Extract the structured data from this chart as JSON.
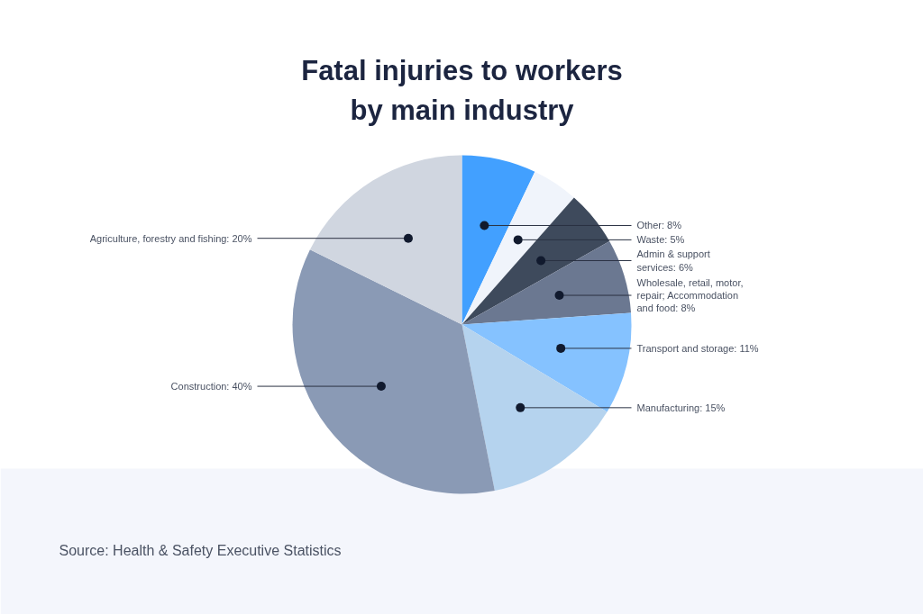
{
  "chart_data": {
    "type": "pie",
    "title": "Fatal injuries to workers\nby main industry",
    "categories": [
      "Other",
      "Waste",
      "Admin & support\nservices",
      "Wholesale, retail, motor,\nrepair; Accommodation\nand food",
      "Transport and storage",
      "Manufacturing",
      "Construction",
      "Agriculture, forestry and fishing"
    ],
    "values": [
      8,
      5,
      6,
      8,
      11,
      15,
      40,
      20
    ],
    "value_labels": [
      "8%",
      "5%",
      "6%",
      "8%",
      "11%",
      "15%",
      "40%",
      "20%"
    ],
    "colors": [
      "#42a0ff",
      "#f0f4fb",
      "#3e4a5c",
      "#6b7891",
      "#85c2ff",
      "#b5d3ee",
      "#8a9ab5",
      "#d0d6e0"
    ],
    "annotations": [
      "Source: Health & Safety Executive Statistics"
    ]
  }
}
